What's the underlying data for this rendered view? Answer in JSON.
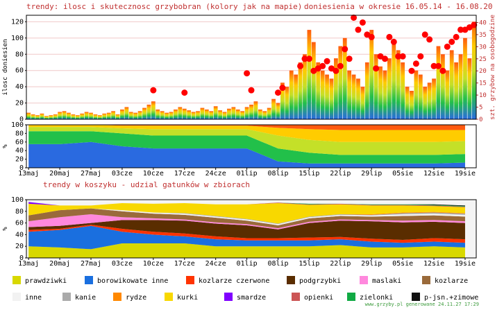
{
  "chart_data": [
    {
      "type": "bar",
      "title": "trendy: ilosc i skutecznosc grzybobran (kolory jak na mapie)",
      "subtitle": "doniesienia w okresie 16.05.14 - 16.08.20",
      "ylabel": "ilosc doniesien",
      "y2label": "szt. grzybow na osobogodzine",
      "xlim": [
        -0.5,
        100.5
      ],
      "ylim": [
        0,
        128
      ],
      "yticks": [
        0,
        20,
        40,
        60,
        80,
        100,
        120
      ],
      "y2lim": [
        0,
        43
      ],
      "y2ticks": [
        0,
        5,
        10,
        15,
        20,
        25,
        30,
        35,
        40
      ],
      "grid": true,
      "series": [
        {
          "type": "bar",
          "x": [
            0,
            1,
            2,
            3,
            4,
            5,
            6,
            7,
            8,
            9,
            10,
            11,
            12,
            13,
            14,
            15,
            16,
            17,
            18,
            19,
            20,
            21,
            22,
            23,
            24,
            25,
            26,
            27,
            28,
            29,
            30,
            31,
            32,
            33,
            34,
            35,
            36,
            37,
            38,
            39,
            40,
            41,
            42,
            43,
            44,
            45,
            46,
            47,
            48,
            49,
            50,
            51,
            52,
            53,
            54,
            55,
            56,
            57,
            58,
            59,
            60,
            61,
            62,
            63,
            64,
            65,
            66,
            67,
            68,
            69,
            70,
            71,
            72,
            73,
            74,
            75,
            76,
            77,
            78,
            79,
            80,
            81,
            82,
            83,
            84,
            85,
            86,
            87,
            88,
            89,
            90,
            91,
            92,
            93,
            94,
            95,
            96,
            97,
            98,
            99,
            100
          ],
          "values": [
            8,
            6,
            5,
            7,
            4,
            5,
            6,
            9,
            10,
            8,
            6,
            5,
            7,
            9,
            8,
            6,
            5,
            7,
            8,
            10,
            6,
            12,
            15,
            9,
            8,
            10,
            14,
            18,
            22,
            12,
            10,
            8,
            9,
            12,
            15,
            13,
            11,
            9,
            10,
            14,
            12,
            10,
            16,
            11,
            9,
            13,
            15,
            12,
            10,
            15,
            18,
            22,
            12,
            10,
            14,
            25,
            20,
            45,
            40,
            60,
            55,
            70,
            80,
            110,
            95,
            70,
            60,
            55,
            50,
            75,
            90,
            100,
            60,
            55,
            50,
            40,
            70,
            110,
            80,
            65,
            60,
            75,
            95,
            85,
            70,
            40,
            35,
            60,
            55,
            40,
            45,
            50,
            90,
            80,
            60,
            85,
            70,
            80,
            100,
            75,
            120
          ]
        },
        {
          "type": "scatter",
          "axis": "y2",
          "color": "#ff0000",
          "x": [
            28,
            35,
            49,
            50,
            56,
            57,
            61,
            62,
            63,
            64,
            65,
            66,
            67,
            68,
            69,
            70,
            71,
            72,
            73,
            74,
            75,
            76,
            77,
            78,
            79,
            80,
            81,
            82,
            83,
            84,
            86,
            87,
            88,
            89,
            90,
            91,
            92,
            93,
            94,
            95,
            96,
            97,
            98,
            99,
            100
          ],
          "values": [
            12,
            11,
            19,
            12,
            11,
            13,
            22,
            25,
            25,
            20,
            21,
            22,
            24,
            21,
            20,
            22,
            29,
            25,
            42,
            37,
            40,
            35,
            34,
            21,
            26,
            25,
            34,
            32,
            26,
            26,
            20,
            23,
            26,
            35,
            33,
            22,
            22,
            20,
            30,
            32,
            34,
            37,
            37,
            38,
            39
          ]
        }
      ]
    },
    {
      "type": "area",
      "ylabel": "%",
      "xlim": [
        -0.5,
        100.5
      ],
      "ylim": [
        0,
        100
      ],
      "yticks": [
        0,
        20,
        40,
        60,
        80,
        100
      ],
      "xticks": [
        {
          "value": 0,
          "label": "13maj"
        },
        {
          "value": 7,
          "label": "20maj"
        },
        {
          "value": 14,
          "label": "27maj"
        },
        {
          "value": 21,
          "label": "03cze"
        },
        {
          "value": 28,
          "label": "10cze"
        },
        {
          "value": 35,
          "label": "17cze"
        },
        {
          "value": 42,
          "label": "24cze"
        },
        {
          "value": 49,
          "label": "01lip"
        },
        {
          "value": 56,
          "label": "08lip"
        },
        {
          "value": 63,
          "label": "15lip"
        },
        {
          "value": 70,
          "label": "22lip"
        },
        {
          "value": 77,
          "label": "29lip"
        },
        {
          "value": 84,
          "label": "05sie"
        },
        {
          "value": 91,
          "label": "12sie"
        },
        {
          "value": 98,
          "label": "19sie"
        }
      ],
      "x": [
        0,
        7,
        14,
        21,
        28,
        35,
        42,
        49,
        56,
        63,
        70,
        77,
        84,
        91,
        98
      ],
      "series": [
        {
          "color": "#2a6ae0",
          "values": [
            55,
            55,
            60,
            50,
            45,
            45,
            45,
            45,
            15,
            10,
            10,
            10,
            10,
            10,
            12
          ]
        },
        {
          "color": "#22c04a",
          "values": [
            30,
            30,
            25,
            30,
            30,
            30,
            30,
            30,
            30,
            25,
            20,
            20,
            20,
            20,
            20
          ]
        },
        {
          "color": "#c4e028",
          "values": [
            10,
            10,
            10,
            12,
            15,
            15,
            15,
            15,
            30,
            30,
            30,
            30,
            30,
            30,
            30
          ]
        },
        {
          "color": "#ffcc00",
          "values": [
            5,
            5,
            5,
            6,
            8,
            8,
            8,
            8,
            18,
            25,
            28,
            28,
            28,
            28,
            26
          ]
        },
        {
          "color": "#ff5a10",
          "values": [
            0,
            0,
            0,
            2,
            2,
            2,
            2,
            2,
            7,
            10,
            12,
            12,
            12,
            12,
            12
          ]
        }
      ]
    },
    {
      "type": "area",
      "title": "trendy w koszyku - udzial gatunków w zbiorach",
      "ylabel": "%",
      "xlim": [
        -0.5,
        100.5
      ],
      "ylim": [
        0,
        100
      ],
      "yticks": [
        0,
        20,
        40,
        60,
        80,
        100
      ],
      "xticks": [
        {
          "value": 0,
          "label": "13maj"
        },
        {
          "value": 7,
          "label": "20maj"
        },
        {
          "value": 14,
          "label": "27maj"
        },
        {
          "value": 21,
          "label": "03cze"
        },
        {
          "value": 28,
          "label": "10cze"
        },
        {
          "value": 35,
          "label": "17cze"
        },
        {
          "value": 42,
          "label": "24cze"
        },
        {
          "value": 49,
          "label": "01lip"
        },
        {
          "value": 56,
          "label": "08lip"
        },
        {
          "value": 63,
          "label": "15lip"
        },
        {
          "value": 70,
          "label": "22lip"
        },
        {
          "value": 77,
          "label": "29lip"
        },
        {
          "value": 84,
          "label": "05sie"
        },
        {
          "value": 91,
          "label": "12sie"
        },
        {
          "value": 98,
          "label": "19sie"
        }
      ],
      "x": [
        0,
        7,
        14,
        21,
        28,
        35,
        42,
        49,
        56,
        63,
        70,
        77,
        84,
        91,
        98
      ],
      "series": [
        {
          "name": "prawdziwki",
          "color": "#d8d800",
          "values": [
            20,
            18,
            15,
            25,
            25,
            25,
            20,
            20,
            20,
            20,
            22,
            18,
            18,
            20,
            18
          ]
        },
        {
          "name": "borowikowate inne",
          "color": "#1a6fdf",
          "values": [
            25,
            30,
            40,
            20,
            15,
            12,
            12,
            10,
            10,
            10,
            10,
            10,
            8,
            8,
            8
          ]
        },
        {
          "name": "kozlarze czerwone",
          "color": "#ff3300",
          "values": [
            3,
            2,
            2,
            5,
            5,
            5,
            5,
            4,
            4,
            5,
            4,
            5,
            5,
            6,
            6
          ]
        },
        {
          "name": "podgrzybki",
          "color": "#5a2d00",
          "values": [
            5,
            5,
            3,
            15,
            20,
            22,
            22,
            22,
            15,
            25,
            28,
            30,
            30,
            28,
            28
          ]
        },
        {
          "name": "maslaki",
          "color": "#ff88dd",
          "values": [
            10,
            15,
            15,
            5,
            3,
            2,
            2,
            2,
            2,
            2,
            2,
            2,
            3,
            3,
            3
          ]
        },
        {
          "name": "kozlarze",
          "color": "#9a6a3a",
          "values": [
            10,
            12,
            10,
            10,
            8,
            8,
            8,
            6,
            5,
            6,
            6,
            6,
            8,
            8,
            8
          ]
        },
        {
          "name": "inne",
          "color": "#f2f2f2",
          "values": [
            0,
            0,
            0,
            2,
            2,
            2,
            2,
            2,
            2,
            2,
            2,
            2,
            3,
            3,
            3
          ]
        },
        {
          "name": "kanie",
          "color": "#aaaaaa",
          "values": [
            0,
            0,
            0,
            0,
            0,
            1,
            1,
            1,
            1,
            1,
            1,
            1,
            2,
            2,
            2
          ]
        },
        {
          "name": "rydze",
          "color": "#ff8800",
          "values": [
            0,
            0,
            0,
            0,
            0,
            0,
            0,
            0,
            0,
            0,
            0,
            1,
            1,
            1,
            1
          ]
        },
        {
          "name": "kurki",
          "color": "#f8d800",
          "values": [
            20,
            8,
            5,
            12,
            15,
            17,
            20,
            25,
            35,
            20,
            17,
            15,
            12,
            10,
            10
          ]
        },
        {
          "name": "smardze",
          "color": "#8000ff",
          "values": [
            3,
            0,
            0,
            0,
            0,
            0,
            0,
            0,
            0,
            0,
            0,
            0,
            0,
            0,
            0
          ]
        },
        {
          "name": "opienki",
          "color": "#cc5555",
          "values": [
            0,
            0,
            0,
            0,
            0,
            0,
            0,
            0,
            1,
            1,
            1,
            1,
            1,
            1,
            1
          ]
        },
        {
          "name": "zielonki",
          "color": "#11aa44",
          "values": [
            0,
            0,
            0,
            0,
            0,
            0,
            0,
            0,
            0,
            1,
            0,
            1,
            1,
            1,
            1
          ]
        },
        {
          "name": "p-jsn.+zimowe",
          "color": "#111111",
          "values": [
            0,
            0,
            0,
            0,
            0,
            0,
            0,
            0,
            0,
            0,
            0,
            0,
            0,
            1,
            1
          ]
        }
      ]
    }
  ],
  "footer": "www.grzyby.pl generowane 24.11.27 17:29"
}
